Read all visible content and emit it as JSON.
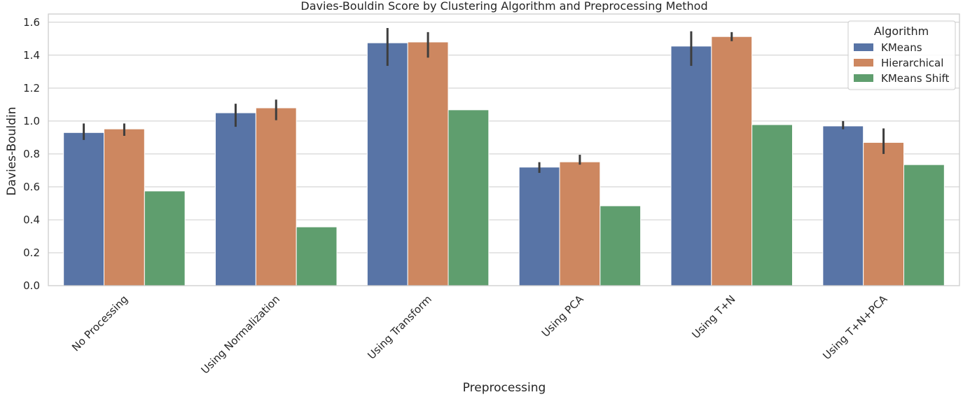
{
  "chart_data": {
    "type": "bar",
    "title": "Davies-Bouldin Score by Clustering Algorithm and Preprocessing Method",
    "xlabel": "Preprocessing",
    "ylabel": "Davies-Bouldin",
    "ylim": [
      0,
      1.6
    ],
    "yticks": [
      0.0,
      0.2,
      0.4,
      0.6,
      0.8,
      1.0,
      1.2,
      1.4,
      1.6
    ],
    "ytick_labels": [
      "0.0",
      "0.2",
      "0.4",
      "0.6",
      "0.8",
      "1.0",
      "1.2",
      "1.4",
      "1.6"
    ],
    "grid": true,
    "legend": {
      "title": "Algorithm",
      "placement": "top-right"
    },
    "categories": [
      "No Processing",
      "Using Normalization",
      "Using Transform",
      "Using PCA",
      "Using T+N",
      "Using T+N+PCA"
    ],
    "series": [
      {
        "name": "KMeans",
        "color": "#5874a6",
        "values": [
          0.93,
          1.05,
          1.475,
          0.72,
          1.455,
          0.97
        ],
        "error_low": [
          0.885,
          0.965,
          1.335,
          0.685,
          1.335,
          0.95
        ],
        "error_high": [
          0.985,
          1.105,
          1.565,
          0.75,
          1.545,
          1.0
        ]
      },
      {
        "name": "Hierarchical",
        "color": "#cd8760",
        "values": [
          0.952,
          1.08,
          1.48,
          0.752,
          1.513,
          0.87
        ],
        "error_low": [
          0.91,
          1.005,
          1.385,
          0.735,
          1.485,
          0.8
        ],
        "error_high": [
          0.985,
          1.13,
          1.54,
          0.795,
          1.54,
          0.955
        ]
      },
      {
        "name": "KMeans Shift",
        "color": "#5f9e6e",
        "values": [
          0.575,
          0.357,
          1.068,
          0.485,
          0.978,
          0.735
        ],
        "error_low": [
          null,
          null,
          null,
          null,
          null,
          null
        ],
        "error_high": [
          null,
          null,
          null,
          null,
          null,
          null
        ]
      }
    ]
  }
}
